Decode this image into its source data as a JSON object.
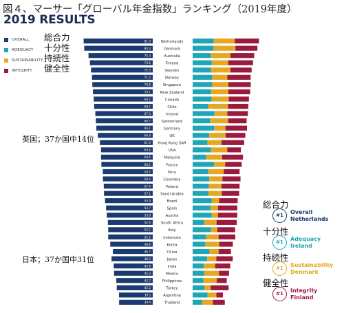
{
  "figure_title": "図４、マーサー「グローバル年金指数」ランキング（2019年度）",
  "results_title": "2019 RESULTS",
  "legend": [
    {
      "label": "OVERALL",
      "jp": "総合力",
      "color": "#1b3a6f",
      "icon": "square-swatch"
    },
    {
      "label": "ADEQUACY",
      "jp": "十分性",
      "color": "#1fa6b6",
      "icon": "square-swatch"
    },
    {
      "label": "SUSTAINABILITY",
      "jp": "持続性",
      "color": "#e5a823",
      "icon": "square-swatch"
    },
    {
      "label": "INTEGRITY",
      "jp": "健全性",
      "color": "#9b1b3e",
      "icon": "square-swatch"
    }
  ],
  "annotations": {
    "uk": "英国；37か国中14位",
    "japan": "日本；37か国中31位"
  },
  "badges": [
    {
      "jp": "総合力",
      "rank": "#1",
      "line1": "Overall",
      "line2": "Netherlands",
      "color": "#1b3a6f",
      "icon": "rank-medal-icon"
    },
    {
      "jp": "十分性",
      "rank": "#1",
      "line1": "Adequacy",
      "line2": "Ireland",
      "color": "#1fa6b6",
      "icon": "rank-medal-icon"
    },
    {
      "jp": "持続性",
      "rank": "#1",
      "line1": "Sustainability",
      "line2": "Denmark",
      "color": "#e5a823",
      "icon": "rank-medal-icon"
    },
    {
      "jp": "健全性",
      "rank": "#1",
      "line1": "Integrity",
      "line2": "Finland",
      "color": "#9b1b3e",
      "icon": "rank-medal-icon"
    }
  ],
  "chart_data": {
    "type": "bar",
    "title": "2019 RESULTS",
    "orientation": "horizontal",
    "layout": "diverging: overall index bars extend left of country labels; stacked sub-index bars extend right",
    "categories": [
      "Netherlands",
      "Denmark",
      "Australia",
      "Finland",
      "Sweden",
      "Norway",
      "Singapore",
      "New Zealand",
      "Canada",
      "Chile",
      "Ireland",
      "Switzerland",
      "Germany",
      "UK",
      "Hong Kong SAR",
      "USA",
      "Malaysia",
      "France",
      "Peru",
      "Colombia",
      "Poland",
      "Saudi Arabia",
      "Brazil",
      "Spain",
      "Austria",
      "South Africa",
      "Italy",
      "Indonesia",
      "Korea",
      "China",
      "Japan",
      "India",
      "Mexico",
      "Philippines",
      "Turkey",
      "Argentina",
      "Thailand"
    ],
    "series": [
      {
        "name": "OVERALL",
        "color": "#1b3a6f",
        "values": [
          81.0,
          80.3,
          75.3,
          73.6,
          72.3,
          71.2,
          70.8,
          70.1,
          69.2,
          68.7,
          67.3,
          66.7,
          66.1,
          64.4,
          61.9,
          60.6,
          60.6,
          60.2,
          58.5,
          58.4,
          57.4,
          57.1,
          55.9,
          54.7,
          53.9,
          52.6,
          52.2,
          52.2,
          49.8,
          46.7,
          48.3,
          45.8,
          45.3,
          42.7,
          42.2,
          39.5,
          39.4
        ]
      },
      {
        "name": "ADEQUACY",
        "color": "#1fa6b6",
        "values": [
          78.7,
          77.5,
          67.0,
          71.1,
          68.2,
          72.6,
          73.2,
          68.4,
          71.1,
          58.0,
          81.5,
          65.1,
          79.9,
          62.2,
          54.9,
          68.3,
          50.7,
          79.6,
          58.4,
          61.7,
          60.8,
          58.9,
          71.5,
          67.1,
          70.7,
          43.4,
          68.3,
          50.8,
          47.1,
          62.6,
          54.4,
          41.6,
          42.8,
          39.9,
          43.6,
          55.5,
          35.4
        ]
      },
      {
        "name": "SUSTAINABILITY",
        "color": "#e5a823",
        "values": [
          78.3,
          82.0,
          73.5,
          61.5,
          72.8,
          56.6,
          59.6,
          64.6,
          63.5,
          74.2,
          47.8,
          67.3,
          42.4,
          60.8,
          53.0,
          60.7,
          59.3,
          41.9,
          57.6,
          49.4,
          46.7,
          50.0,
          27.3,
          27.4,
          23.3,
          45.6,
          23.5,
          45.7,
          52.0,
          34.2,
          34.0,
          42.2,
          55.3,
          50.1,
          23.9,
          33.1,
          40.1
        ]
      },
      {
        "name": "INTEGRITY",
        "color": "#9b1b3e",
        "values": [
          90.1,
          81.9,
          89.0,
          92.5,
          78.9,
          86.9,
          83.9,
          81.6,
          75.3,
          75.4,
          76.5,
          68.7,
          80.3,
          73.3,
          84.2,
          51.0,
          77.6,
          61.5,
          59.0,
          67.3,
          67.5,
          64.7,
          69.0,
          71.8,
          72.4,
          75.3,
          66.6,
          62.6,
          50.7,
          45.9,
          61.1,
          56.5,
          37.5,
          37.1,
          66.7,
          24.3,
          44.3
        ]
      }
    ]
  }
}
